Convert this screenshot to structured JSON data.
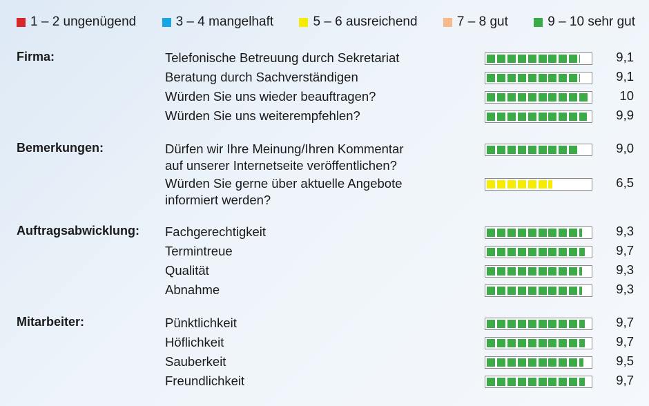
{
  "chart_data": {
    "type": "bar",
    "orientation": "horizontal",
    "scale": [
      0,
      10
    ],
    "legend": [
      {
        "label": "1 – 2 ungenügend",
        "color": "#d9262c"
      },
      {
        "label": "3 – 4 mangelhaft",
        "color": "#17a6e2"
      },
      {
        "label": "5 – 6 ausreichend",
        "color": "#f5ec00"
      },
      {
        "label": "7 – 8 gut",
        "color": "#f7b98a"
      },
      {
        "label": "9 – 10 sehr gut",
        "color": "#3aab47"
      }
    ],
    "groups": [
      {
        "category": "Firma:",
        "items": [
          {
            "label": "Telefonische Betreuung durch Sekretariat",
            "value": 9.1,
            "display": "9,1"
          },
          {
            "label": "Beratung durch Sachverständigen",
            "value": 9.1,
            "display": "9,1"
          },
          {
            "label": "Würden Sie uns wieder beauftragen?",
            "value": 10,
            "display": "10"
          },
          {
            "label": "Würden Sie uns weiterempfehlen?",
            "value": 9.9,
            "display": "9,9"
          }
        ]
      },
      {
        "category": "Bemerkungen:",
        "items": [
          {
            "label": "Dürfen wir Ihre Meinung/Ihren Kommentar\nauf unserer Internetseite veröffentlichen?",
            "value": 9.0,
            "display": "9,0"
          },
          {
            "label": "Würden Sie gerne über aktuelle Angebote\ninformiert werden?",
            "value": 6.5,
            "display": "6,5"
          }
        ]
      },
      {
        "category": "Auftragsabwicklung:",
        "items": [
          {
            "label": "Fachgerechtigkeit",
            "value": 9.3,
            "display": "9,3"
          },
          {
            "label": "Termintreue",
            "value": 9.7,
            "display": "9,7"
          },
          {
            "label": "Qualität",
            "value": 9.3,
            "display": "9,3"
          },
          {
            "label": "Abnahme",
            "value": 9.3,
            "display": "9,3"
          }
        ]
      },
      {
        "category": "Mitarbeiter:",
        "items": [
          {
            "label": "Pünktlichkeit",
            "value": 9.7,
            "display": "9,7"
          },
          {
            "label": "Höflichkeit",
            "value": 9.7,
            "display": "9,7"
          },
          {
            "label": "Sauberkeit",
            "value": 9.5,
            "display": "9,5"
          },
          {
            "label": "Freundlichkeit",
            "value": 9.7,
            "display": "9,7"
          }
        ]
      }
    ]
  }
}
